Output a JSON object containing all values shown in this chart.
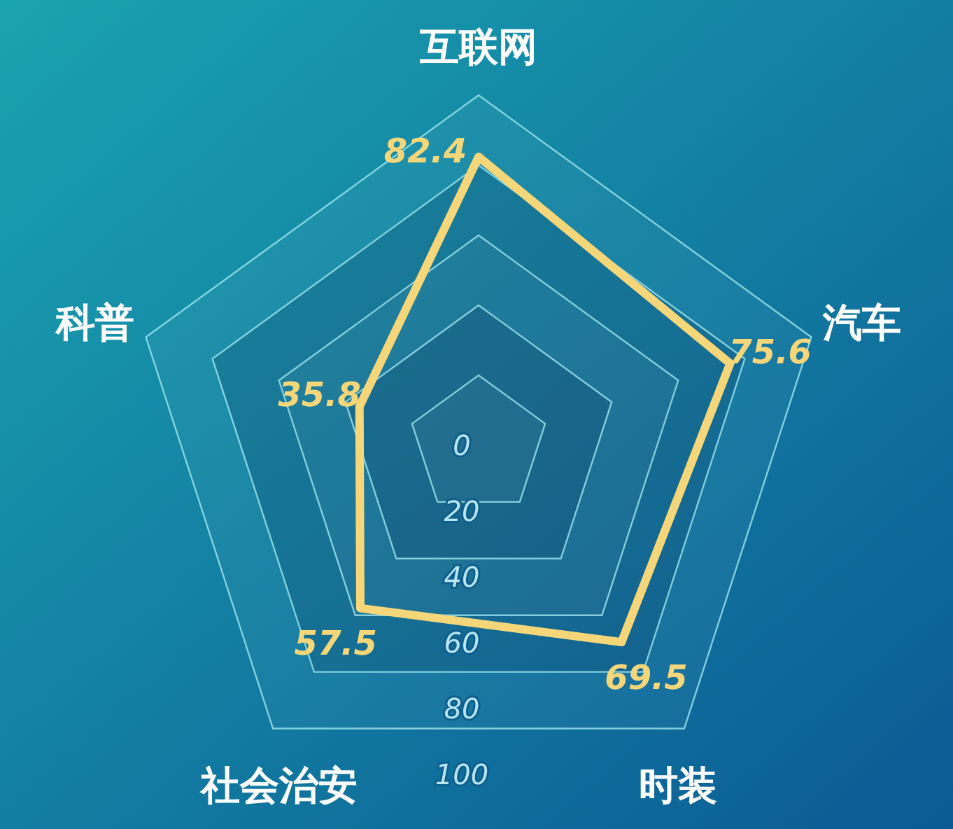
{
  "chart_data": {
    "type": "radar",
    "categories": [
      "互联网",
      "汽车",
      "时装",
      "社会治安",
      "科普"
    ],
    "series": [
      {
        "color": "#f5d77a",
        "values": [
          82.4,
          75.6,
          69.5,
          57.5,
          35.8
        ]
      }
    ],
    "ylim": [
      0,
      100
    ],
    "yticks": [
      0,
      20,
      40,
      60,
      80,
      100
    ],
    "data_labels": true
  }
}
